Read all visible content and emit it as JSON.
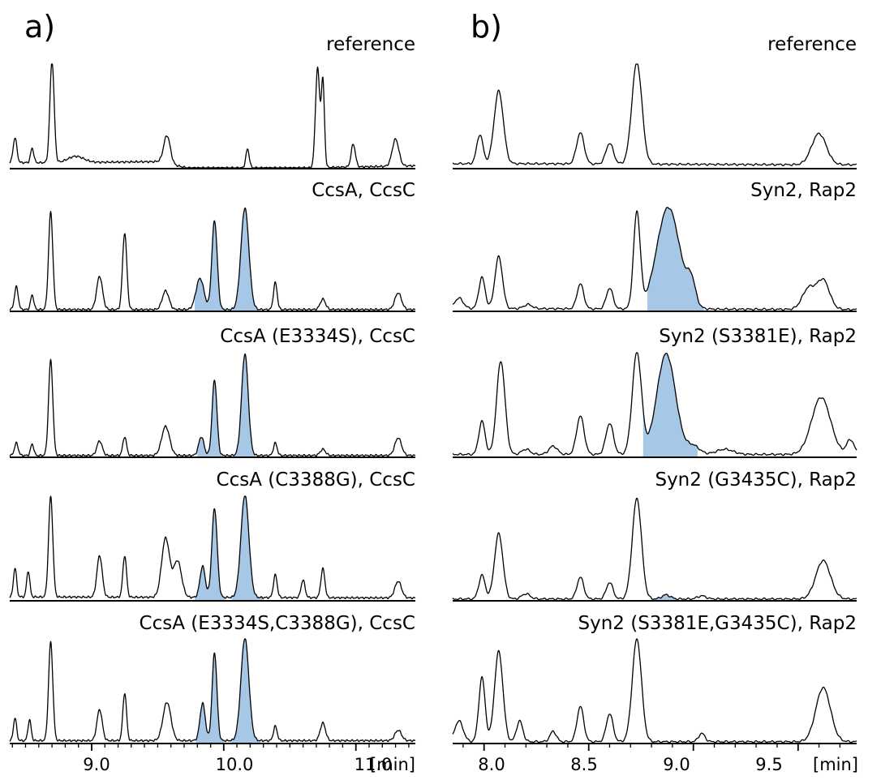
{
  "fill_color": "#a6c8e6",
  "line_color": "#000000",
  "chart_data": [
    {
      "type": "line",
      "panel_label": "a)",
      "x_unit": "[min]",
      "xlim": [
        8.38,
        11.45
      ],
      "xticks": [
        9.0,
        10.0,
        11.0
      ],
      "xtick_labels": [
        "9.0",
        "10.0",
        "11.0"
      ],
      "minor_tick_step": 0.1,
      "traces": [
        {
          "label": "reference",
          "peaks": [
            [
              8.42,
              0.24,
              0.014
            ],
            [
              8.55,
              0.14,
              0.012
            ],
            [
              8.7,
              0.98,
              0.016
            ],
            [
              8.88,
              0.06,
              0.06
            ],
            [
              9.57,
              0.27,
              0.025
            ],
            [
              10.18,
              0.18,
              0.013
            ],
            [
              10.71,
              0.96,
              0.016
            ],
            [
              10.75,
              0.82,
              0.012
            ],
            [
              10.98,
              0.22,
              0.016
            ],
            [
              11.3,
              0.26,
              0.025
            ]
          ],
          "baseline": [
            [
              8.8,
              0.05
            ],
            [
              9.5,
              0.06
            ],
            [
              9.72,
              0.0
            ],
            [
              10.1,
              0.0
            ],
            [
              10.62,
              0.0
            ],
            [
              11.45,
              0.02
            ]
          ],
          "highlight": []
        },
        {
          "label": "CcsA, CcsC",
          "peaks": [
            [
              8.43,
              0.22,
              0.014
            ],
            [
              8.55,
              0.14,
              0.012
            ],
            [
              8.69,
              0.94,
              0.016
            ],
            [
              9.06,
              0.32,
              0.022
            ],
            [
              9.25,
              0.74,
              0.016
            ],
            [
              9.56,
              0.18,
              0.025
            ],
            [
              9.82,
              0.3,
              0.03
            ],
            [
              9.93,
              0.86,
              0.02
            ],
            [
              10.16,
              0.98,
              0.03
            ],
            [
              10.39,
              0.26,
              0.014
            ],
            [
              10.75,
              0.1,
              0.02
            ],
            [
              11.32,
              0.16,
              0.025
            ]
          ],
          "baseline": [
            [
              8.4,
              0.01
            ],
            [
              11.45,
              0.01
            ]
          ],
          "highlight": [
            [
              9.78,
              10.01
            ],
            [
              10.06,
              10.26
            ]
          ]
        },
        {
          "label": "CcsA (E3334S), CcsC",
          "peaks": [
            [
              8.43,
              0.12,
              0.014
            ],
            [
              8.55,
              0.11,
              0.012
            ],
            [
              8.69,
              0.92,
              0.016
            ],
            [
              9.06,
              0.14,
              0.02
            ],
            [
              9.25,
              0.18,
              0.014
            ],
            [
              9.56,
              0.28,
              0.03
            ],
            [
              9.83,
              0.18,
              0.02
            ],
            [
              9.93,
              0.73,
              0.018
            ],
            [
              10.16,
              0.98,
              0.025
            ],
            [
              10.39,
              0.12,
              0.014
            ],
            [
              10.75,
              0.06,
              0.02
            ],
            [
              11.32,
              0.17,
              0.025
            ]
          ],
          "baseline": [
            [
              8.4,
              0.01
            ],
            [
              11.45,
              0.01
            ]
          ],
          "highlight": [
            [
              9.8,
              10.0
            ],
            [
              10.08,
              10.24
            ]
          ]
        },
        {
          "label": "CcsA (C3388G), CcsC",
          "peaks": [
            [
              8.42,
              0.28,
              0.012
            ],
            [
              8.52,
              0.25,
              0.012
            ],
            [
              8.69,
              0.97,
              0.016
            ],
            [
              9.06,
              0.4,
              0.02
            ],
            [
              9.25,
              0.4,
              0.014
            ],
            [
              9.56,
              0.57,
              0.03
            ],
            [
              9.65,
              0.35,
              0.03
            ],
            [
              9.84,
              0.3,
              0.02
            ],
            [
              9.93,
              0.86,
              0.02
            ],
            [
              10.16,
              0.99,
              0.03
            ],
            [
              10.39,
              0.22,
              0.014
            ],
            [
              10.6,
              0.17,
              0.015
            ],
            [
              10.75,
              0.28,
              0.015
            ],
            [
              11.32,
              0.16,
              0.025
            ]
          ],
          "baseline": [
            [
              8.4,
              0.03
            ],
            [
              11.45,
              0.02
            ]
          ],
          "highlight": [
            [
              9.78,
              10.01
            ],
            [
              10.06,
              10.3
            ]
          ]
        },
        {
          "label": "CcsA (E3334S,C3388G), CcsC",
          "peaks": [
            [
              8.42,
              0.22,
              0.012
            ],
            [
              8.53,
              0.2,
              0.012
            ],
            [
              8.69,
              0.95,
              0.016
            ],
            [
              9.06,
              0.3,
              0.02
            ],
            [
              9.25,
              0.46,
              0.014
            ],
            [
              9.57,
              0.37,
              0.03
            ],
            [
              9.84,
              0.36,
              0.02
            ],
            [
              9.93,
              0.85,
              0.018
            ],
            [
              10.16,
              0.99,
              0.03
            ],
            [
              10.39,
              0.14,
              0.014
            ],
            [
              10.75,
              0.17,
              0.02
            ],
            [
              11.32,
              0.1,
              0.025
            ]
          ],
          "baseline": [
            [
              8.4,
              0.02
            ],
            [
              11.45,
              0.02
            ]
          ],
          "highlight": [
            [
              9.79,
              10.0
            ],
            [
              10.06,
              10.28
            ]
          ]
        }
      ]
    },
    {
      "type": "line",
      "panel_label": "b)",
      "x_unit": "[min]",
      "xlim": [
        7.85,
        9.78
      ],
      "xticks": [
        8.0,
        8.5,
        9.0,
        9.5
      ],
      "xtick_labels": [
        "8.0",
        "8.5",
        "9.0",
        "9.5"
      ],
      "minor_tick_step": 0.1,
      "traces": [
        {
          "label": "reference",
          "peaks": [
            [
              7.98,
              0.28,
              0.015
            ],
            [
              8.07,
              0.7,
              0.022
            ],
            [
              8.46,
              0.3,
              0.018
            ],
            [
              8.6,
              0.2,
              0.018
            ],
            [
              8.73,
              0.98,
              0.024
            ],
            [
              9.6,
              0.3,
              0.035
            ]
          ],
          "baseline": [
            [
              8.2,
              0.04
            ],
            [
              9.5,
              0.03
            ]
          ],
          "highlight": []
        },
        {
          "label": "Syn2, Rap2",
          "peaks": [
            [
              7.88,
              0.1,
              0.02
            ],
            [
              7.99,
              0.3,
              0.015
            ],
            [
              8.07,
              0.5,
              0.018
            ],
            [
              8.21,
              0.04,
              0.02
            ],
            [
              8.46,
              0.24,
              0.016
            ],
            [
              8.6,
              0.2,
              0.016
            ],
            [
              8.73,
              0.92,
              0.016
            ],
            [
              8.88,
              0.98,
              0.055
            ],
            [
              8.99,
              0.22,
              0.02
            ],
            [
              9.55,
              0.2,
              0.03
            ],
            [
              9.62,
              0.28,
              0.03
            ]
          ],
          "baseline": [
            [
              7.9,
              0.02
            ],
            [
              9.78,
              0.01
            ]
          ],
          "highlight": [
            [
              8.78,
              9.05
            ]
          ]
        },
        {
          "label": "Syn2 (S3381E), Rap2",
          "peaks": [
            [
              7.99,
              0.32,
              0.015
            ],
            [
              8.08,
              0.9,
              0.02
            ],
            [
              8.2,
              0.05,
              0.02
            ],
            [
              8.33,
              0.08,
              0.02
            ],
            [
              8.46,
              0.37,
              0.018
            ],
            [
              8.6,
              0.3,
              0.018
            ],
            [
              8.73,
              0.98,
              0.022
            ],
            [
              8.87,
              0.97,
              0.045
            ],
            [
              9.0,
              0.08,
              0.03
            ],
            [
              9.15,
              0.05,
              0.04
            ],
            [
              9.61,
              0.55,
              0.045
            ],
            [
              9.75,
              0.14,
              0.018
            ]
          ],
          "baseline": [
            [
              7.9,
              0.02
            ],
            [
              9.78,
              0.02
            ]
          ],
          "highlight": [
            [
              8.76,
              9.02
            ]
          ]
        },
        {
          "label": "Syn2 (G3435C), Rap2",
          "peaks": [
            [
              7.99,
              0.23,
              0.015
            ],
            [
              8.07,
              0.63,
              0.02
            ],
            [
              8.2,
              0.05,
              0.02
            ],
            [
              8.46,
              0.21,
              0.016
            ],
            [
              8.6,
              0.16,
              0.016
            ],
            [
              8.73,
              0.97,
              0.022
            ],
            [
              8.87,
              0.04,
              0.02
            ],
            [
              9.04,
              0.03,
              0.02
            ],
            [
              9.62,
              0.37,
              0.035
            ]
          ],
          "baseline": [
            [
              7.9,
              0.01
            ],
            [
              9.78,
              0.01
            ]
          ],
          "highlight": [
            [
              8.81,
              8.93
            ]
          ]
        },
        {
          "label": "Syn2 (S3381E,G3435C), Rap2",
          "peaks": [
            [
              7.88,
              0.2,
              0.02
            ],
            [
              7.99,
              0.62,
              0.015
            ],
            [
              8.07,
              0.87,
              0.02
            ],
            [
              8.17,
              0.2,
              0.015
            ],
            [
              8.33,
              0.1,
              0.015
            ],
            [
              8.46,
              0.34,
              0.016
            ],
            [
              8.6,
              0.27,
              0.016
            ],
            [
              8.73,
              0.99,
              0.022
            ],
            [
              9.04,
              0.08,
              0.015
            ],
            [
              9.62,
              0.52,
              0.035
            ]
          ],
          "baseline": [
            [
              7.9,
              0.01
            ],
            [
              9.78,
              0.01
            ]
          ],
          "highlight": []
        }
      ]
    }
  ]
}
